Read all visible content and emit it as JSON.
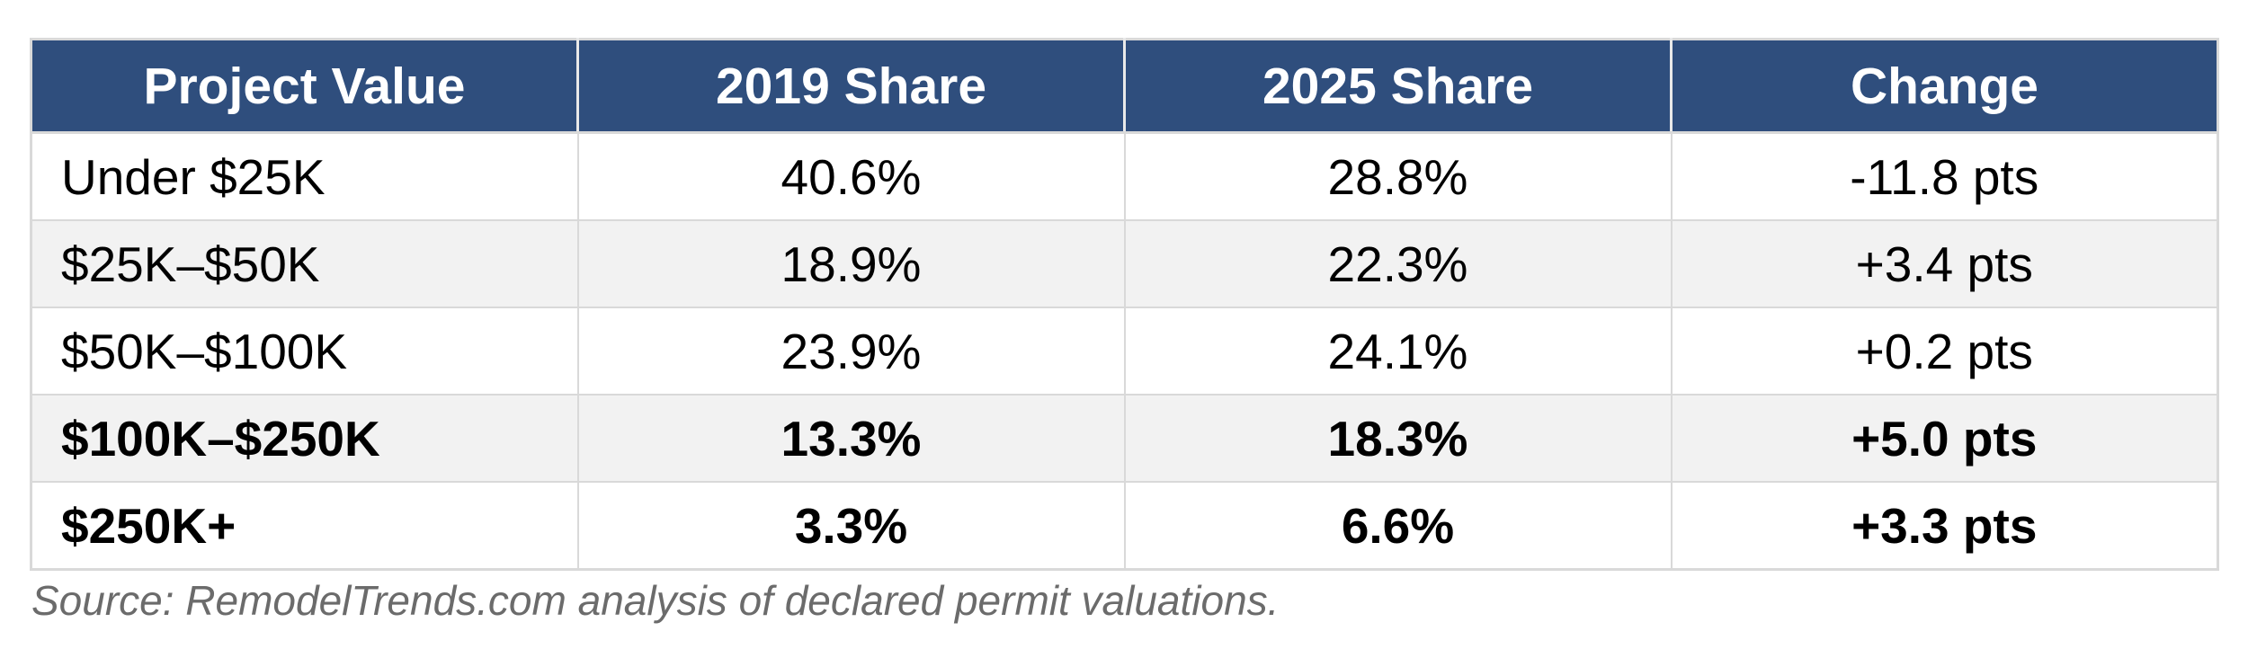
{
  "chart_data": {
    "type": "table",
    "columns": [
      "Project Value",
      "2019 Share",
      "2025 Share",
      "Change"
    ],
    "rows": [
      {
        "cells": [
          "Under $25K",
          "40.6%",
          "28.8%",
          "-11.8 pts"
        ],
        "bold": false
      },
      {
        "cells": [
          "$25K–$50K",
          "18.9%",
          "22.3%",
          "+3.4 pts"
        ],
        "bold": false
      },
      {
        "cells": [
          "$50K–$100K",
          "23.9%",
          "24.1%",
          "+0.2 pts"
        ],
        "bold": false
      },
      {
        "cells": [
          "$100K–$250K",
          "13.3%",
          "18.3%",
          "+5.0 pts"
        ],
        "bold": true
      },
      {
        "cells": [
          "$250K+",
          "3.3%",
          "6.6%",
          "+3.3 pts"
        ],
        "bold": true
      }
    ],
    "source_note": "Source: RemodelTrends.com analysis of declared permit valuations.",
    "layout": {
      "header_position": "top",
      "zebra_striping": "rows 2 and 4 shaded",
      "first_column_align": "left",
      "value_columns_align": "center"
    }
  },
  "colors": {
    "header_bg": "#2F4E7D",
    "header_text": "#FFFFFF",
    "header_divider": "#E9E9E9",
    "stripe_bg": "#F2F2F2",
    "border_color": "#D9D9D9",
    "body_text": "#000000",
    "source_text": "#6B6B6B"
  }
}
